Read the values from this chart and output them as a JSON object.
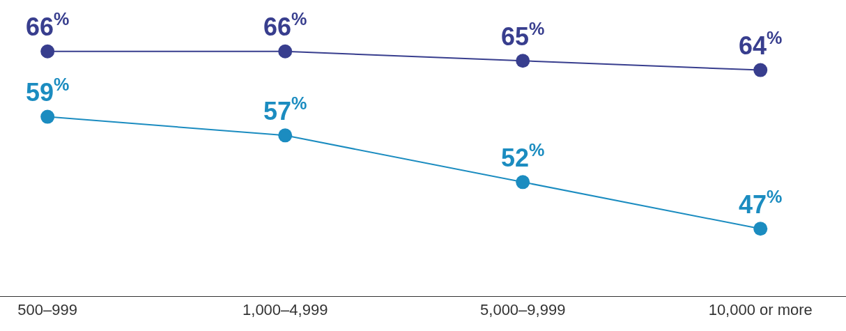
{
  "chart_data": {
    "type": "line",
    "categories": [
      "500–999",
      "1,000–4,999",
      "5,000–9,999",
      "10,000 or more"
    ],
    "series": [
      {
        "color": "#383e8e",
        "values": [
          66,
          66,
          65,
          64
        ],
        "value_labels": [
          "66$^{%}$",
          "66$^{%}$",
          "65$^{%}$",
          "64$^{%}$"
        ]
      },
      {
        "color": "#1b8cc0",
        "values": [
          59,
          57,
          52,
          47
        ],
        "value_labels": [
          "59$^{%}$",
          "57$^{%}$",
          "52$^{%}$",
          "47$^{%}$"
        ]
      }
    ],
    "marker": "circle",
    "line_style": "solid"
  }
}
